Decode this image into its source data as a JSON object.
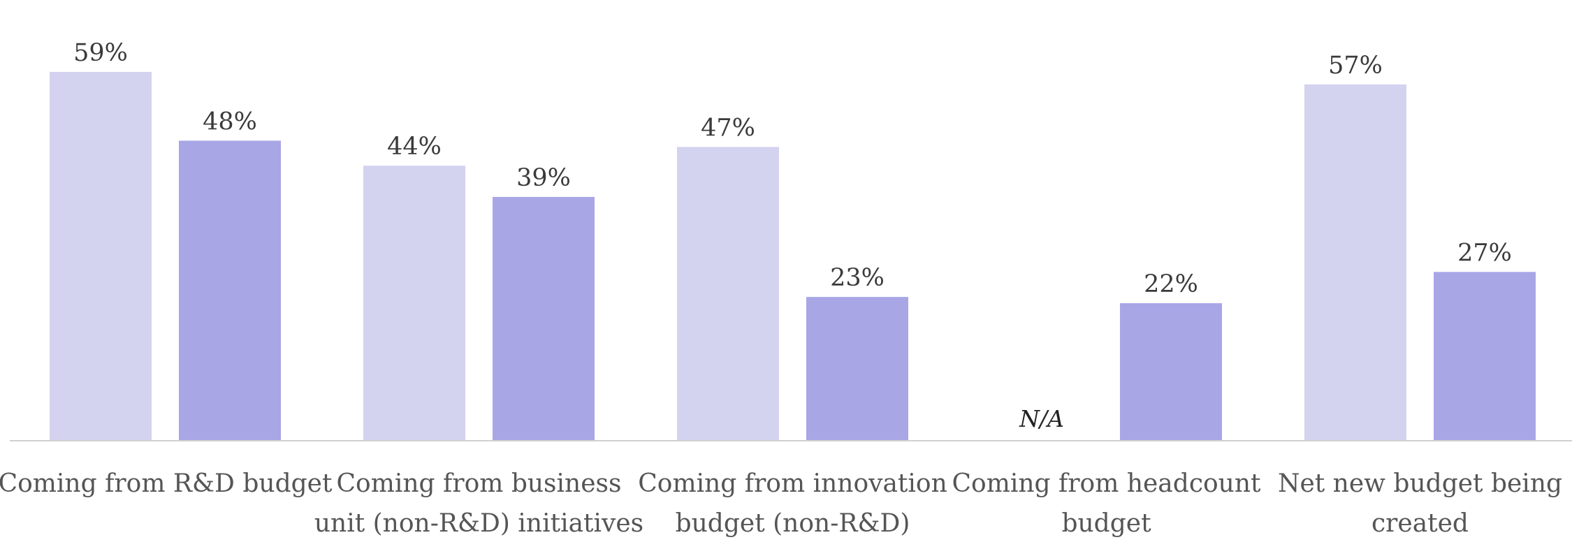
{
  "chart_data": {
    "type": "bar",
    "categories": [
      [
        "Coming from R&D budget"
      ],
      [
        "Coming from business",
        "unit (non-R&D) initiatives"
      ],
      [
        "Coming from innovation",
        "budget (non-R&D)"
      ],
      [
        "Coming from headcount",
        "budget"
      ],
      [
        "Net new budget being",
        "created"
      ]
    ],
    "series": [
      {
        "values": [
          59,
          44,
          47,
          null,
          57
        ],
        "labels": [
          "59%",
          "44%",
          "47%",
          "N/A",
          "57%"
        ],
        "color": "#d3d3f0"
      },
      {
        "values": [
          48,
          39,
          23,
          22,
          27
        ],
        "labels": [
          "48%",
          "39%",
          "23%",
          "22%",
          "27%"
        ],
        "color": "#a8a6e5"
      }
    ],
    "ylim": [
      0,
      70
    ],
    "grid": false,
    "legend": "none",
    "axis_color": "#d0d0d0"
  }
}
